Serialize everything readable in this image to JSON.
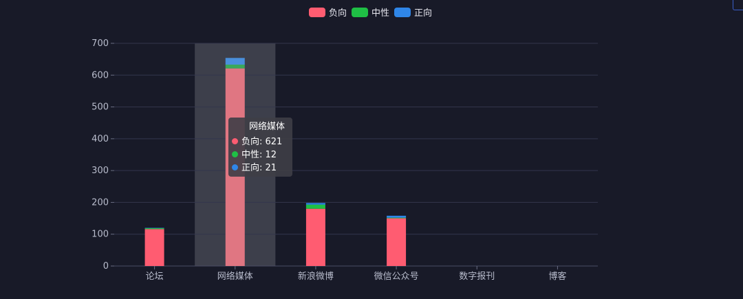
{
  "chart_data": {
    "type": "bar",
    "stacked": true,
    "categories": [
      "论坛",
      "网络媒体",
      "新浪微博",
      "微信公众号",
      "数字报刊",
      "博客"
    ],
    "series": [
      {
        "name": "负向",
        "color": "#ff5c71",
        "values": [
          116,
          621,
          180,
          150,
          0,
          0
        ]
      },
      {
        "name": "中性",
        "color": "#1fbf45",
        "values": [
          3,
          12,
          13,
          2,
          0,
          0
        ]
      },
      {
        "name": "正向",
        "color": "#2f86e8",
        "values": [
          1,
          21,
          5,
          6,
          0,
          0
        ]
      }
    ],
    "yticks": [
      0,
      100,
      200,
      300,
      400,
      500,
      600,
      700
    ],
    "ylim": [
      0,
      700
    ],
    "grid": true,
    "legend_position": "top-center",
    "highlighted_category": "网络媒体",
    "tooltip": {
      "title": "网络媒体",
      "rows": [
        {
          "label": "负向: 621",
          "color": "#ff5c71"
        },
        {
          "label": "中性: 12",
          "color": "#1fbf45"
        },
        {
          "label": "正向: 21",
          "color": "#2f86e8"
        }
      ]
    }
  }
}
